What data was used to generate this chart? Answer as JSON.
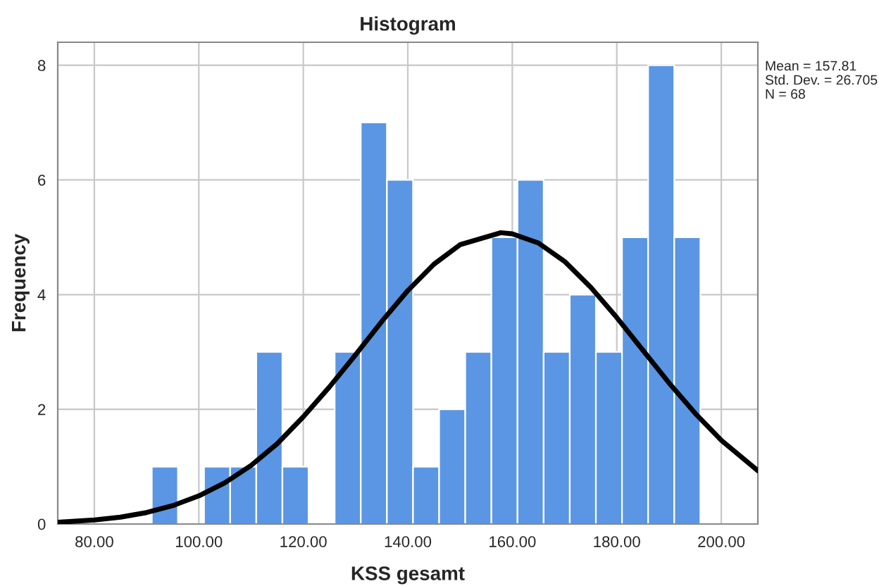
{
  "chart_data": {
    "type": "histogram",
    "title": "Histogram",
    "xlabel": "KSS gesamt",
    "ylabel": "Frequency",
    "bins": [
      91,
      96,
      101,
      106,
      111,
      116,
      121,
      126,
      131,
      136,
      141,
      146,
      151,
      156,
      161,
      166,
      171,
      176,
      181,
      186,
      191,
      196
    ],
    "values": [
      1,
      0,
      1,
      1,
      3,
      1,
      0,
      3,
      7,
      6,
      1,
      2,
      3,
      5,
      6,
      3,
      4,
      3,
      5,
      8,
      5
    ],
    "color": "#5a96e3",
    "series": [
      {
        "type": "line",
        "color": "#000000",
        "x": [
          73,
          80,
          85,
          90,
          95,
          100,
          105,
          110,
          115,
          120,
          125,
          130,
          135,
          140,
          145,
          150,
          157.81,
          160,
          165,
          170,
          175,
          180,
          185,
          190,
          195,
          200,
          207
        ],
        "values": [
          0.03,
          0.07,
          0.12,
          0.2,
          0.32,
          0.49,
          0.72,
          1.02,
          1.4,
          1.87,
          2.39,
          2.95,
          3.53,
          4.07,
          4.53,
          4.87,
          5.08,
          5.06,
          4.9,
          4.58,
          4.13,
          3.6,
          3.03,
          2.46,
          1.93,
          1.46,
          0.93
        ]
      }
    ],
    "xlim": [
      73,
      207
    ],
    "ylim": [
      0,
      8.4
    ],
    "xticks": [
      {
        "value": 80,
        "label": "80.00"
      },
      {
        "value": 100,
        "label": "100.00"
      },
      {
        "value": 120,
        "label": "120.00"
      },
      {
        "value": 140,
        "label": "140.00"
      },
      {
        "value": 160,
        "label": "160.00"
      },
      {
        "value": 180,
        "label": "180.00"
      },
      {
        "value": 200,
        "label": "200.00"
      }
    ],
    "yticks": [
      0,
      2,
      4,
      6,
      8
    ],
    "grid": true,
    "annotations": [
      "Mean = 157.81",
      "Std. Dev. = 26.705",
      "N = 68"
    ]
  }
}
